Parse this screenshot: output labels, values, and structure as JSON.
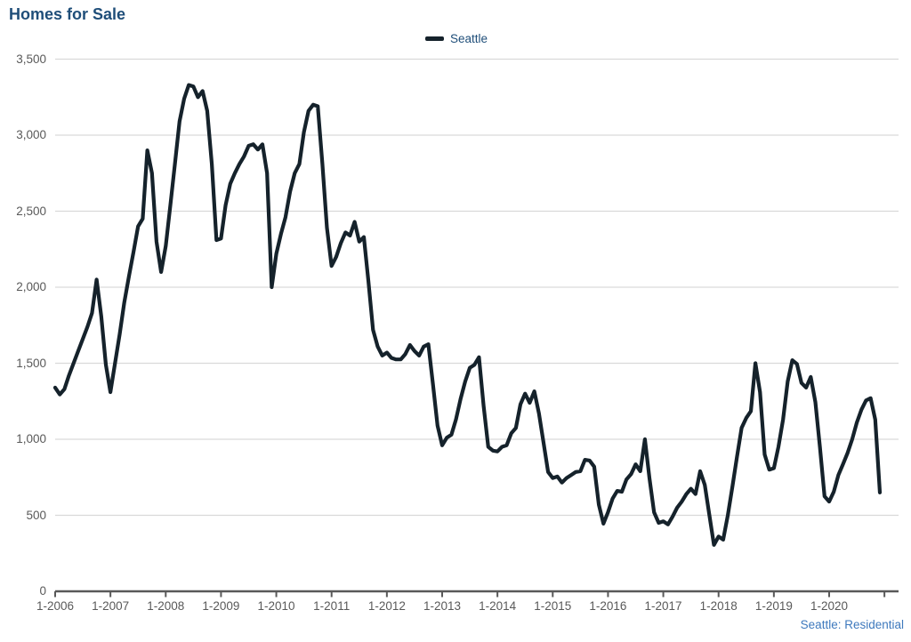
{
  "title": "Homes for Sale",
  "legend": {
    "label": "Seattle"
  },
  "footer": "Seattle: Residential",
  "colors": {
    "line": "#15222b",
    "title": "#1f4e79",
    "legend_text": "#1f4e79",
    "footer": "#3e79bd",
    "axis_text": "#595959",
    "axis_line": "#595959",
    "gridline": "#d9d9d9"
  },
  "chart_data": {
    "type": "line",
    "title": "Homes for Sale",
    "xlabel": "",
    "ylabel": "",
    "ylim": [
      0,
      3500
    ],
    "grid": "horizontal",
    "legend_position": "top-center",
    "x_unit": "month",
    "x_range": "Jan 2006 - Dec 2020",
    "x_tick_labels": [
      "1-2006",
      "1-2007",
      "1-2008",
      "1-2009",
      "1-2010",
      "1-2011",
      "1-2012",
      "1-2013",
      "1-2014",
      "1-2015",
      "1-2016",
      "1-2017",
      "1-2018",
      "1-2019",
      "1-2020"
    ],
    "y_ticks": [
      0,
      500,
      1000,
      1500,
      2000,
      2500,
      3000,
      3500
    ],
    "y_tick_labels": [
      "0",
      "500",
      "1,000",
      "1,500",
      "2,000",
      "2,500",
      "3,000",
      "3,500"
    ],
    "series": [
      {
        "name": "Seattle",
        "values": [
          1340,
          1295,
          1330,
          1420,
          1500,
          1580,
          1660,
          1740,
          1830,
          2050,
          1810,
          1490,
          1310,
          1500,
          1690,
          1900,
          2070,
          2230,
          2400,
          2450,
          2900,
          2750,
          2300,
          2100,
          2270,
          2540,
          2810,
          3090,
          3240,
          3330,
          3320,
          3250,
          3290,
          3160,
          2810,
          2310,
          2320,
          2540,
          2680,
          2750,
          2810,
          2860,
          2930,
          2940,
          2905,
          2940,
          2750,
          2000,
          2220,
          2350,
          2460,
          2630,
          2750,
          2810,
          3020,
          3160,
          3200,
          3190,
          2810,
          2390,
          2140,
          2200,
          2290,
          2360,
          2340,
          2430,
          2300,
          2330,
          2040,
          1720,
          1610,
          1550,
          1570,
          1535,
          1525,
          1525,
          1560,
          1620,
          1580,
          1550,
          1610,
          1625,
          1365,
          1090,
          960,
          1010,
          1030,
          1130,
          1265,
          1380,
          1470,
          1490,
          1540,
          1220,
          950,
          925,
          920,
          950,
          960,
          1040,
          1075,
          1230,
          1300,
          1240,
          1315,
          1170,
          980,
          785,
          745,
          755,
          715,
          745,
          765,
          785,
          790,
          865,
          860,
          820,
          570,
          445,
          520,
          610,
          660,
          655,
          735,
          770,
          835,
          790,
          1000,
          745,
          520,
          450,
          460,
          440,
          490,
          550,
          590,
          640,
          675,
          640,
          790,
          700,
          500,
          305,
          360,
          340,
          500,
          690,
          885,
          1075,
          1140,
          1185,
          1500,
          1310,
          900,
          800,
          810,
          950,
          1130,
          1380,
          1520,
          1495,
          1370,
          1340,
          1410,
          1245,
          950,
          625,
          590,
          655,
          765,
          835,
          910,
          1000,
          1110,
          1195,
          1255,
          1270,
          1130,
          650
        ]
      }
    ]
  }
}
